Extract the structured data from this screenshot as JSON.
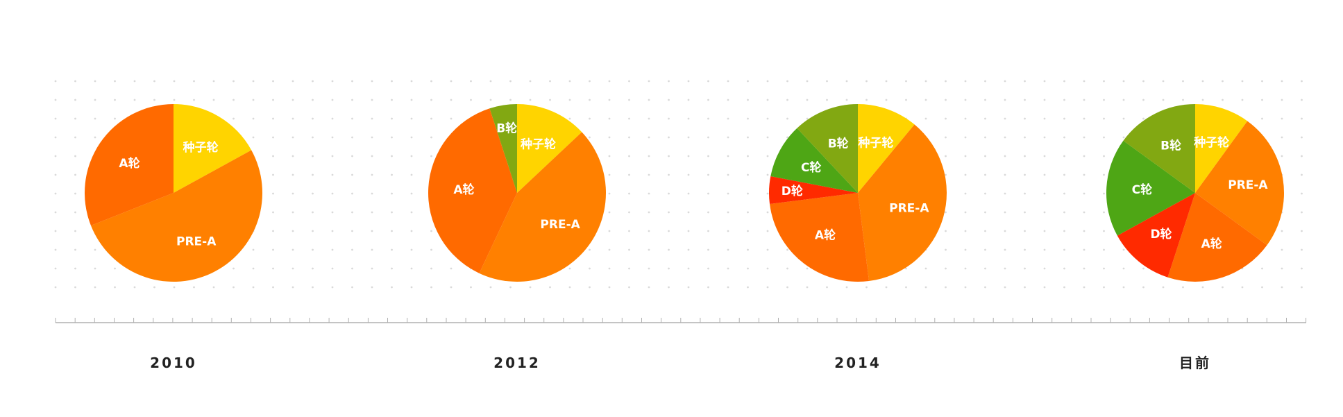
{
  "colors": {
    "种子轮": "#FFD400",
    "PRE-A": "#FF8000",
    "A轮": "#FF6A00",
    "B轮": "#82A812",
    "C轮": "#4EA615",
    "D轮": "#FF2A00"
  },
  "chart_data": [
    {
      "type": "pie",
      "caption": "2010",
      "slices": [
        {
          "label": "种子轮",
          "value": 17
        },
        {
          "label": "PRE-A",
          "value": 52
        },
        {
          "label": "A轮",
          "value": 31
        }
      ]
    },
    {
      "type": "pie",
      "caption": "2012",
      "slices": [
        {
          "label": "种子轮",
          "value": 13
        },
        {
          "label": "PRE-A",
          "value": 44
        },
        {
          "label": "A轮",
          "value": 38
        },
        {
          "label": "B轮",
          "value": 5
        }
      ]
    },
    {
      "type": "pie",
      "caption": "2014",
      "slices": [
        {
          "label": "种子轮",
          "value": 11
        },
        {
          "label": "PRE-A",
          "value": 37
        },
        {
          "label": "A轮",
          "value": 25
        },
        {
          "label": "D轮",
          "value": 5
        },
        {
          "label": "C轮",
          "value": 10
        },
        {
          "label": "B轮",
          "value": 12
        }
      ]
    },
    {
      "type": "pie",
      "caption": "目前",
      "slices": [
        {
          "label": "种子轮",
          "value": 10
        },
        {
          "label": "PRE-A",
          "value": 25
        },
        {
          "label": "A轮",
          "value": 20
        },
        {
          "label": "D轮",
          "value": 12
        },
        {
          "label": "C轮",
          "value": 18
        },
        {
          "label": "B轮",
          "value": 15
        }
      ]
    }
  ]
}
